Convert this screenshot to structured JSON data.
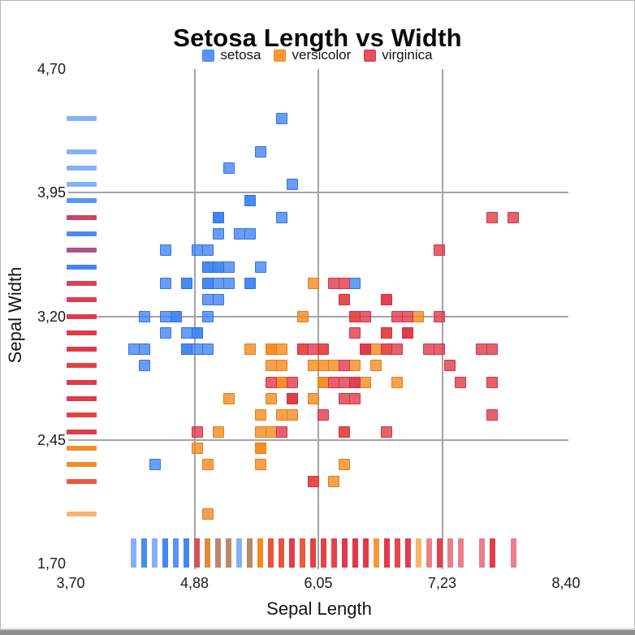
{
  "title": "Setosa Length vs Width",
  "legend": {
    "items": [
      {
        "label": "setosa",
        "color": "#4285F4"
      },
      {
        "label": "versicolor",
        "color": "#F58A1F"
      },
      {
        "label": "virginica",
        "color": "#E0394B"
      }
    ]
  },
  "axes": {
    "x": {
      "label": "Sepal Length",
      "min": 3.7,
      "max": 8.4,
      "ticks": [
        {
          "value": 3.7,
          "label": "3,70"
        },
        {
          "value": 4.875,
          "label": "4,88"
        },
        {
          "value": 6.05,
          "label": "6,05"
        },
        {
          "value": 7.225,
          "label": "7,23"
        },
        {
          "value": 8.4,
          "label": "8,40"
        }
      ],
      "grid_values": [
        4.875,
        6.05,
        7.225
      ]
    },
    "y": {
      "label": "Sepal Width",
      "min": 1.7,
      "max": 4.7,
      "ticks": [
        {
          "value": 4.7,
          "label": "4,70"
        },
        {
          "value": 3.95,
          "label": "3,95"
        },
        {
          "value": 3.2,
          "label": "3,20"
        },
        {
          "value": 2.45,
          "label": "2,45"
        },
        {
          "value": 1.7,
          "label": "1,70"
        }
      ],
      "grid_values": [
        3.95,
        3.2,
        2.45
      ]
    }
  },
  "style": {
    "grid_color": "#A3A4A8",
    "marker_alpha": 0.8,
    "rug_alpha": 0.65,
    "text_color": "#141414"
  },
  "chart_data": {
    "type": "scatter",
    "title": "Setosa Length vs Width",
    "xlabel": "Sepal Length",
    "ylabel": "Sepal Width",
    "xlim": [
      3.7,
      8.4
    ],
    "ylim": [
      1.7,
      4.7
    ],
    "grid": true,
    "legend_position": "top",
    "marker": "square",
    "rug": "both-axes",
    "decimal_separator": ",",
    "series": [
      {
        "name": "setosa",
        "color": "#4285F4",
        "border": "#2F6FD6",
        "points": [
          [
            5.1,
            3.5
          ],
          [
            4.9,
            3.0
          ],
          [
            4.7,
            3.2
          ],
          [
            4.6,
            3.1
          ],
          [
            5.0,
            3.6
          ],
          [
            5.4,
            3.9
          ],
          [
            4.6,
            3.4
          ],
          [
            5.0,
            3.4
          ],
          [
            4.4,
            2.9
          ],
          [
            4.9,
            3.1
          ],
          [
            5.4,
            3.7
          ],
          [
            4.8,
            3.4
          ],
          [
            4.8,
            3.0
          ],
          [
            4.3,
            3.0
          ],
          [
            5.8,
            4.0
          ],
          [
            5.7,
            4.4
          ],
          [
            5.4,
            3.9
          ],
          [
            5.1,
            3.5
          ],
          [
            5.7,
            3.8
          ],
          [
            5.1,
            3.8
          ],
          [
            5.4,
            3.4
          ],
          [
            5.1,
            3.7
          ],
          [
            4.6,
            3.6
          ],
          [
            5.1,
            3.3
          ],
          [
            4.8,
            3.4
          ],
          [
            5.0,
            3.0
          ],
          [
            5.0,
            3.4
          ],
          [
            5.2,
            3.5
          ],
          [
            5.2,
            3.4
          ],
          [
            4.7,
            3.2
          ],
          [
            4.8,
            3.1
          ],
          [
            5.4,
            3.4
          ],
          [
            5.2,
            4.1
          ],
          [
            5.5,
            4.2
          ],
          [
            4.9,
            3.1
          ],
          [
            5.0,
            3.2
          ],
          [
            5.5,
            3.5
          ],
          [
            4.9,
            3.6
          ],
          [
            4.4,
            3.0
          ],
          [
            5.1,
            3.4
          ],
          [
            5.0,
            3.5
          ],
          [
            4.5,
            2.3
          ],
          [
            4.4,
            3.2
          ],
          [
            5.0,
            3.5
          ],
          [
            5.1,
            3.8
          ],
          [
            4.8,
            3.0
          ],
          [
            5.1,
            3.8
          ],
          [
            4.6,
            3.2
          ],
          [
            5.3,
            3.7
          ],
          [
            5.0,
            3.3
          ],
          [
            6.4,
            3.4
          ]
        ]
      },
      {
        "name": "versicolor",
        "color": "#F58A1F",
        "border": "#E07B0C",
        "points": [
          [
            7.0,
            3.2
          ],
          [
            6.4,
            3.2
          ],
          [
            6.9,
            3.1
          ],
          [
            5.5,
            2.3
          ],
          [
            6.5,
            2.8
          ],
          [
            5.7,
            2.8
          ],
          [
            6.3,
            3.3
          ],
          [
            4.9,
            2.4
          ],
          [
            6.6,
            2.9
          ],
          [
            5.2,
            2.7
          ],
          [
            5.0,
            2.0
          ],
          [
            5.9,
            3.0
          ],
          [
            6.0,
            2.2
          ],
          [
            6.1,
            2.9
          ],
          [
            5.6,
            2.9
          ],
          [
            6.7,
            3.1
          ],
          [
            5.6,
            3.0
          ],
          [
            5.8,
            2.7
          ],
          [
            6.2,
            2.2
          ],
          [
            5.6,
            2.5
          ],
          [
            5.9,
            3.2
          ],
          [
            6.1,
            2.8
          ],
          [
            6.3,
            2.5
          ],
          [
            6.1,
            2.8
          ],
          [
            6.4,
            2.9
          ],
          [
            6.6,
            3.0
          ],
          [
            6.8,
            2.8
          ],
          [
            6.7,
            3.0
          ],
          [
            6.0,
            2.9
          ],
          [
            5.7,
            2.6
          ],
          [
            5.5,
            2.4
          ],
          [
            5.5,
            2.4
          ],
          [
            5.8,
            2.7
          ],
          [
            6.0,
            2.7
          ],
          [
            5.4,
            3.0
          ],
          [
            6.0,
            3.4
          ],
          [
            6.7,
            3.1
          ],
          [
            6.3,
            2.3
          ],
          [
            5.6,
            3.0
          ],
          [
            5.5,
            2.5
          ],
          [
            5.5,
            2.6
          ],
          [
            6.1,
            3.0
          ],
          [
            5.8,
            2.6
          ],
          [
            5.0,
            2.3
          ],
          [
            5.6,
            2.7
          ],
          [
            5.7,
            3.0
          ],
          [
            5.7,
            2.9
          ],
          [
            6.2,
            2.9
          ],
          [
            5.1,
            2.5
          ],
          [
            5.7,
            2.8
          ]
        ]
      },
      {
        "name": "virginica",
        "color": "#E0394B",
        "border": "#CF2F41",
        "points": [
          [
            6.3,
            3.3
          ],
          [
            5.8,
            2.7
          ],
          [
            7.1,
            3.0
          ],
          [
            6.3,
            2.9
          ],
          [
            6.5,
            3.0
          ],
          [
            7.6,
            3.0
          ],
          [
            4.9,
            2.5
          ],
          [
            7.3,
            2.9
          ],
          [
            6.7,
            2.5
          ],
          [
            7.2,
            3.6
          ],
          [
            6.5,
            3.2
          ],
          [
            6.4,
            2.7
          ],
          [
            6.8,
            3.0
          ],
          [
            5.7,
            2.5
          ],
          [
            5.8,
            2.8
          ],
          [
            6.4,
            3.2
          ],
          [
            6.5,
            3.0
          ],
          [
            7.7,
            3.8
          ],
          [
            7.7,
            2.6
          ],
          [
            6.0,
            2.2
          ],
          [
            6.9,
            3.2
          ],
          [
            5.6,
            2.8
          ],
          [
            7.7,
            2.8
          ],
          [
            6.3,
            2.7
          ],
          [
            6.7,
            3.3
          ],
          [
            7.2,
            3.2
          ],
          [
            6.2,
            2.8
          ],
          [
            6.1,
            3.0
          ],
          [
            6.4,
            2.8
          ],
          [
            7.2,
            3.0
          ],
          [
            7.4,
            2.8
          ],
          [
            7.9,
            3.8
          ],
          [
            6.4,
            2.8
          ],
          [
            6.3,
            2.8
          ],
          [
            6.1,
            2.6
          ],
          [
            7.7,
            3.0
          ],
          [
            6.3,
            3.4
          ],
          [
            6.4,
            3.1
          ],
          [
            6.0,
            3.0
          ],
          [
            6.9,
            3.1
          ],
          [
            6.7,
            3.1
          ],
          [
            6.9,
            3.1
          ],
          [
            5.8,
            2.7
          ],
          [
            6.8,
            3.2
          ],
          [
            6.7,
            3.3
          ],
          [
            6.7,
            3.0
          ],
          [
            6.3,
            2.5
          ],
          [
            6.5,
            3.0
          ],
          [
            6.2,
            3.4
          ],
          [
            5.9,
            3.0
          ]
        ]
      }
    ]
  }
}
